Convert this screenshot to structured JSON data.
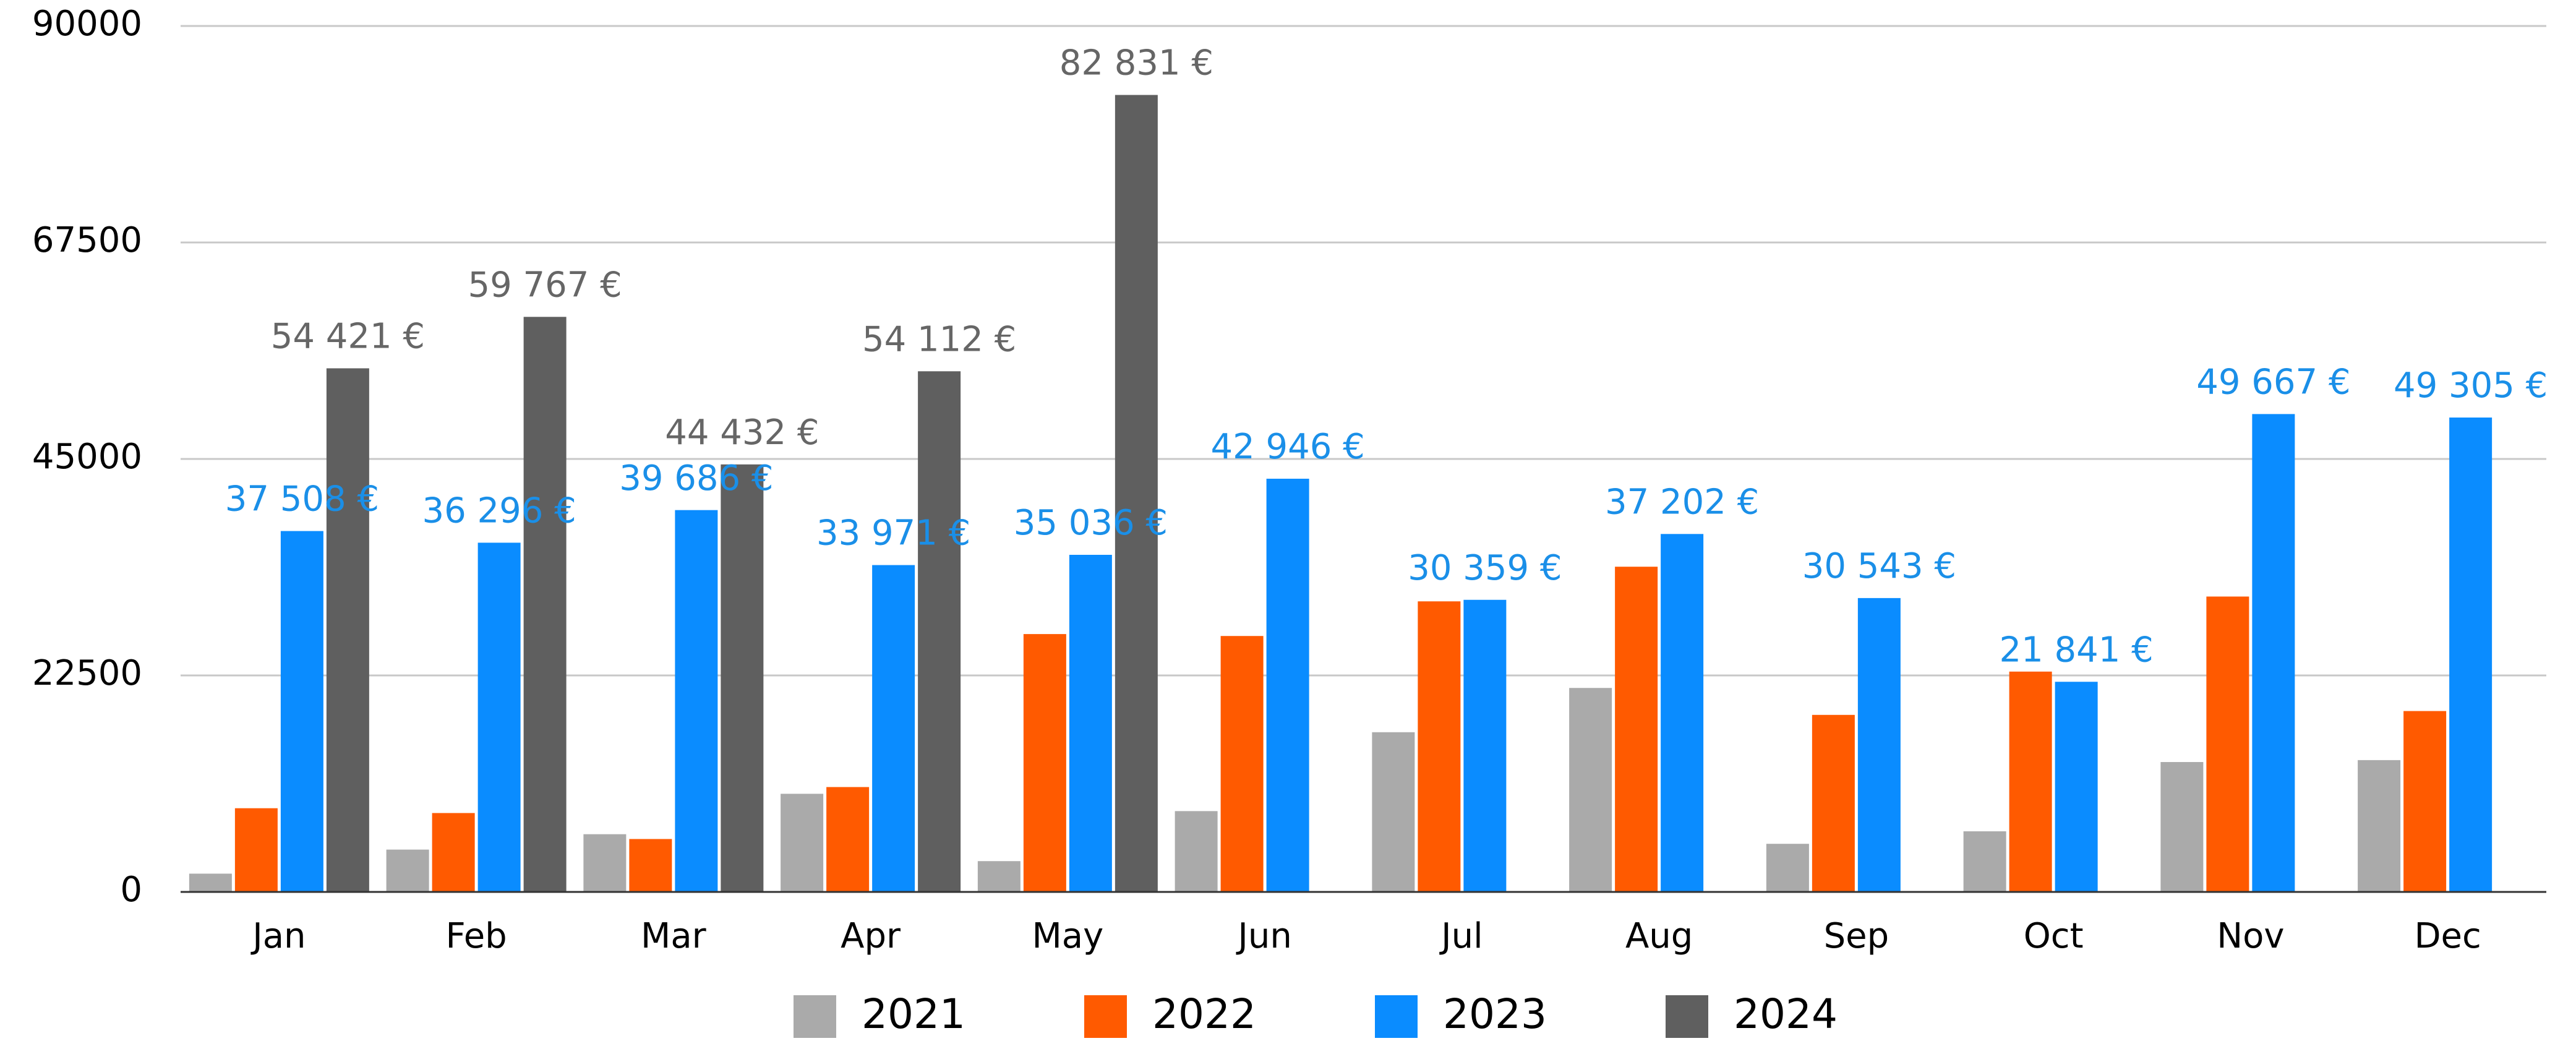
{
  "chart_data": {
    "type": "bar",
    "categories": [
      "Jan",
      "Feb",
      "Mar",
      "Apr",
      "May",
      "Jun",
      "Jul",
      "Aug",
      "Sep",
      "Oct",
      "Nov",
      "Dec"
    ],
    "series": [
      {
        "name": "2021",
        "color": "#aaaaaa",
        "values": [
          1900,
          4400,
          6000,
          10200,
          3200,
          8400,
          16600,
          21200,
          5000,
          6300,
          13500,
          13700
        ]
      },
      {
        "name": "2022",
        "color": "#ff5a00",
        "values": [
          8700,
          8200,
          5500,
          10900,
          26800,
          26600,
          30200,
          33800,
          18400,
          22900,
          30700,
          18800
        ]
      },
      {
        "name": "2023",
        "color": "#0a8cff",
        "values": [
          37508,
          36296,
          39686,
          33971,
          35036,
          42946,
          30359,
          37202,
          30543,
          21841,
          49667,
          49305
        ],
        "value_labels": [
          "37 508 €",
          "36 296 €",
          "39 686 €",
          "33 971 €",
          "35 036 €",
          "42 946 €",
          "30 359 €",
          "37 202 €",
          "30 543 €",
          "21 841 €",
          "49 667 €",
          "49 305 €"
        ]
      },
      {
        "name": "2024",
        "color": "#5f5f5f",
        "values": [
          54421,
          59767,
          44432,
          54112,
          82831,
          null,
          null,
          null,
          null,
          null,
          null,
          null
        ],
        "value_labels": [
          "54 421 €",
          "59 767 €",
          "44 432 €",
          "54 112 €",
          "82 831 €",
          null,
          null,
          null,
          null,
          null,
          null,
          null
        ]
      }
    ],
    "ylim": [
      0,
      90000
    ],
    "yticks": [
      0,
      22500,
      45000,
      67500,
      90000
    ],
    "grid": true,
    "legend": "bottom"
  }
}
